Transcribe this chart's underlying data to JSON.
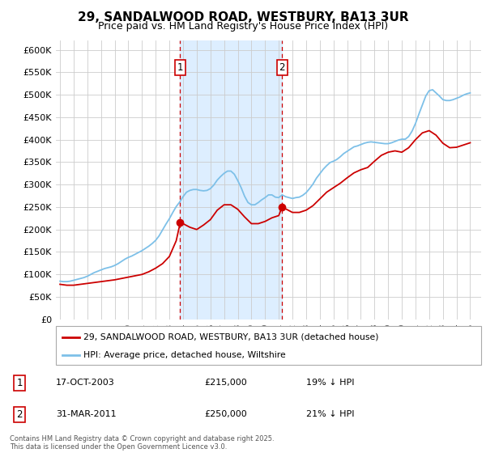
{
  "title": "29, SANDALWOOD ROAD, WESTBURY, BA13 3UR",
  "subtitle": "Price paid vs. HM Land Registry's House Price Index (HPI)",
  "title_fontsize": 11,
  "subtitle_fontsize": 9,
  "ylim": [
    0,
    620000
  ],
  "yticks": [
    0,
    50000,
    100000,
    150000,
    200000,
    250000,
    300000,
    350000,
    400000,
    450000,
    500000,
    550000,
    600000
  ],
  "xlim_start": 1994.7,
  "xlim_end": 2025.8,
  "background_color": "#ffffff",
  "plot_bg_color": "#ffffff",
  "grid_color": "#cccccc",
  "hpi_color": "#7dc0e8",
  "price_color": "#cc0000",
  "shade_color": "#ddeeff",
  "vline_color": "#cc0000",
  "sale1_x": 2003.79,
  "sale1_y": 215000,
  "sale1_label": "1",
  "sale1_date": "17-OCT-2003",
  "sale1_price": "£215,000",
  "sale1_hpi": "19% ↓ HPI",
  "sale2_x": 2011.24,
  "sale2_y": 250000,
  "sale2_label": "2",
  "sale2_date": "31-MAR-2011",
  "sale2_price": "£250,000",
  "sale2_hpi": "21% ↓ HPI",
  "legend_label_price": "29, SANDALWOOD ROAD, WESTBURY, BA13 3UR (detached house)",
  "legend_label_hpi": "HPI: Average price, detached house, Wiltshire",
  "footnote": "Contains HM Land Registry data © Crown copyright and database right 2025.\nThis data is licensed under the Open Government Licence v3.0.",
  "hpi_x": [
    1995.0,
    1995.25,
    1995.5,
    1995.75,
    1996.0,
    1996.25,
    1996.5,
    1996.75,
    1997.0,
    1997.25,
    1997.5,
    1997.75,
    1998.0,
    1998.25,
    1998.5,
    1998.75,
    1999.0,
    1999.25,
    1999.5,
    1999.75,
    2000.0,
    2000.25,
    2000.5,
    2000.75,
    2001.0,
    2001.25,
    2001.5,
    2001.75,
    2002.0,
    2002.25,
    2002.5,
    2002.75,
    2003.0,
    2003.25,
    2003.5,
    2003.75,
    2004.0,
    2004.25,
    2004.5,
    2004.75,
    2005.0,
    2005.25,
    2005.5,
    2005.75,
    2006.0,
    2006.25,
    2006.5,
    2006.75,
    2007.0,
    2007.25,
    2007.5,
    2007.75,
    2008.0,
    2008.25,
    2008.5,
    2008.75,
    2009.0,
    2009.25,
    2009.5,
    2009.75,
    2010.0,
    2010.25,
    2010.5,
    2010.75,
    2011.0,
    2011.25,
    2011.5,
    2011.75,
    2012.0,
    2012.25,
    2012.5,
    2012.75,
    2013.0,
    2013.25,
    2013.5,
    2013.75,
    2014.0,
    2014.25,
    2014.5,
    2014.75,
    2015.0,
    2015.25,
    2015.5,
    2015.75,
    2016.0,
    2016.25,
    2016.5,
    2016.75,
    2017.0,
    2017.25,
    2017.5,
    2017.75,
    2018.0,
    2018.25,
    2018.5,
    2018.75,
    2019.0,
    2019.25,
    2019.5,
    2019.75,
    2020.0,
    2020.25,
    2020.5,
    2020.75,
    2021.0,
    2021.25,
    2021.5,
    2021.75,
    2022.0,
    2022.25,
    2022.5,
    2022.75,
    2023.0,
    2023.25,
    2023.5,
    2023.75,
    2024.0,
    2024.25,
    2024.5,
    2024.75,
    2025.0
  ],
  "hpi_y": [
    85000,
    84000,
    84000,
    85000,
    87000,
    89000,
    91000,
    93000,
    96000,
    100000,
    104000,
    107000,
    110000,
    113000,
    115000,
    117000,
    120000,
    124000,
    129000,
    134000,
    138000,
    141000,
    145000,
    149000,
    153000,
    158000,
    163000,
    169000,
    176000,
    186000,
    199000,
    212000,
    224000,
    238000,
    251000,
    261000,
    273000,
    283000,
    287000,
    289000,
    289000,
    287000,
    286000,
    287000,
    291000,
    299000,
    310000,
    318000,
    325000,
    330000,
    330000,
    323000,
    309000,
    293000,
    274000,
    260000,
    255000,
    255000,
    260000,
    266000,
    271000,
    277000,
    277000,
    272000,
    271000,
    277000,
    273000,
    271000,
    269000,
    271000,
    272000,
    276000,
    282000,
    291000,
    301000,
    314000,
    324000,
    334000,
    342000,
    349000,
    352000,
    356000,
    362000,
    369000,
    374000,
    379000,
    384000,
    386000,
    389000,
    392000,
    394000,
    395000,
    394000,
    393000,
    392000,
    391000,
    391000,
    393000,
    396000,
    399000,
    401000,
    401000,
    407000,
    419000,
    436000,
    457000,
    477000,
    497000,
    509000,
    511000,
    504000,
    497000,
    489000,
    487000,
    487000,
    489000,
    492000,
    495000,
    499000,
    502000,
    504000
  ],
  "price_x": [
    1995.0,
    1995.5,
    1996.0,
    1996.5,
    1997.0,
    1997.5,
    1998.0,
    1998.5,
    1999.0,
    1999.5,
    2000.0,
    2000.5,
    2001.0,
    2001.5,
    2002.0,
    2002.5,
    2003.0,
    2003.5,
    2003.79,
    2004.0,
    2004.5,
    2005.0,
    2005.5,
    2006.0,
    2006.5,
    2007.0,
    2007.5,
    2008.0,
    2008.5,
    2009.0,
    2009.5,
    2010.0,
    2010.5,
    2011.0,
    2011.24,
    2011.5,
    2012.0,
    2012.5,
    2013.0,
    2013.5,
    2014.0,
    2014.5,
    2015.0,
    2015.5,
    2016.0,
    2016.5,
    2017.0,
    2017.5,
    2018.0,
    2018.5,
    2019.0,
    2019.5,
    2020.0,
    2020.5,
    2021.0,
    2021.5,
    2022.0,
    2022.5,
    2023.0,
    2023.5,
    2024.0,
    2024.5,
    2025.0
  ],
  "price_y": [
    78000,
    76000,
    76000,
    78000,
    80000,
    82000,
    84000,
    86000,
    88000,
    91000,
    94000,
    97000,
    100000,
    106000,
    114000,
    124000,
    140000,
    175000,
    215000,
    213000,
    205000,
    200000,
    210000,
    222000,
    243000,
    255000,
    255000,
    245000,
    228000,
    213000,
    213000,
    218000,
    226000,
    231000,
    250000,
    246000,
    238000,
    238000,
    243000,
    253000,
    268000,
    283000,
    293000,
    303000,
    315000,
    326000,
    333000,
    338000,
    352000,
    365000,
    372000,
    375000,
    372000,
    382000,
    400000,
    415000,
    420000,
    410000,
    392000,
    382000,
    383000,
    388000,
    393000
  ]
}
